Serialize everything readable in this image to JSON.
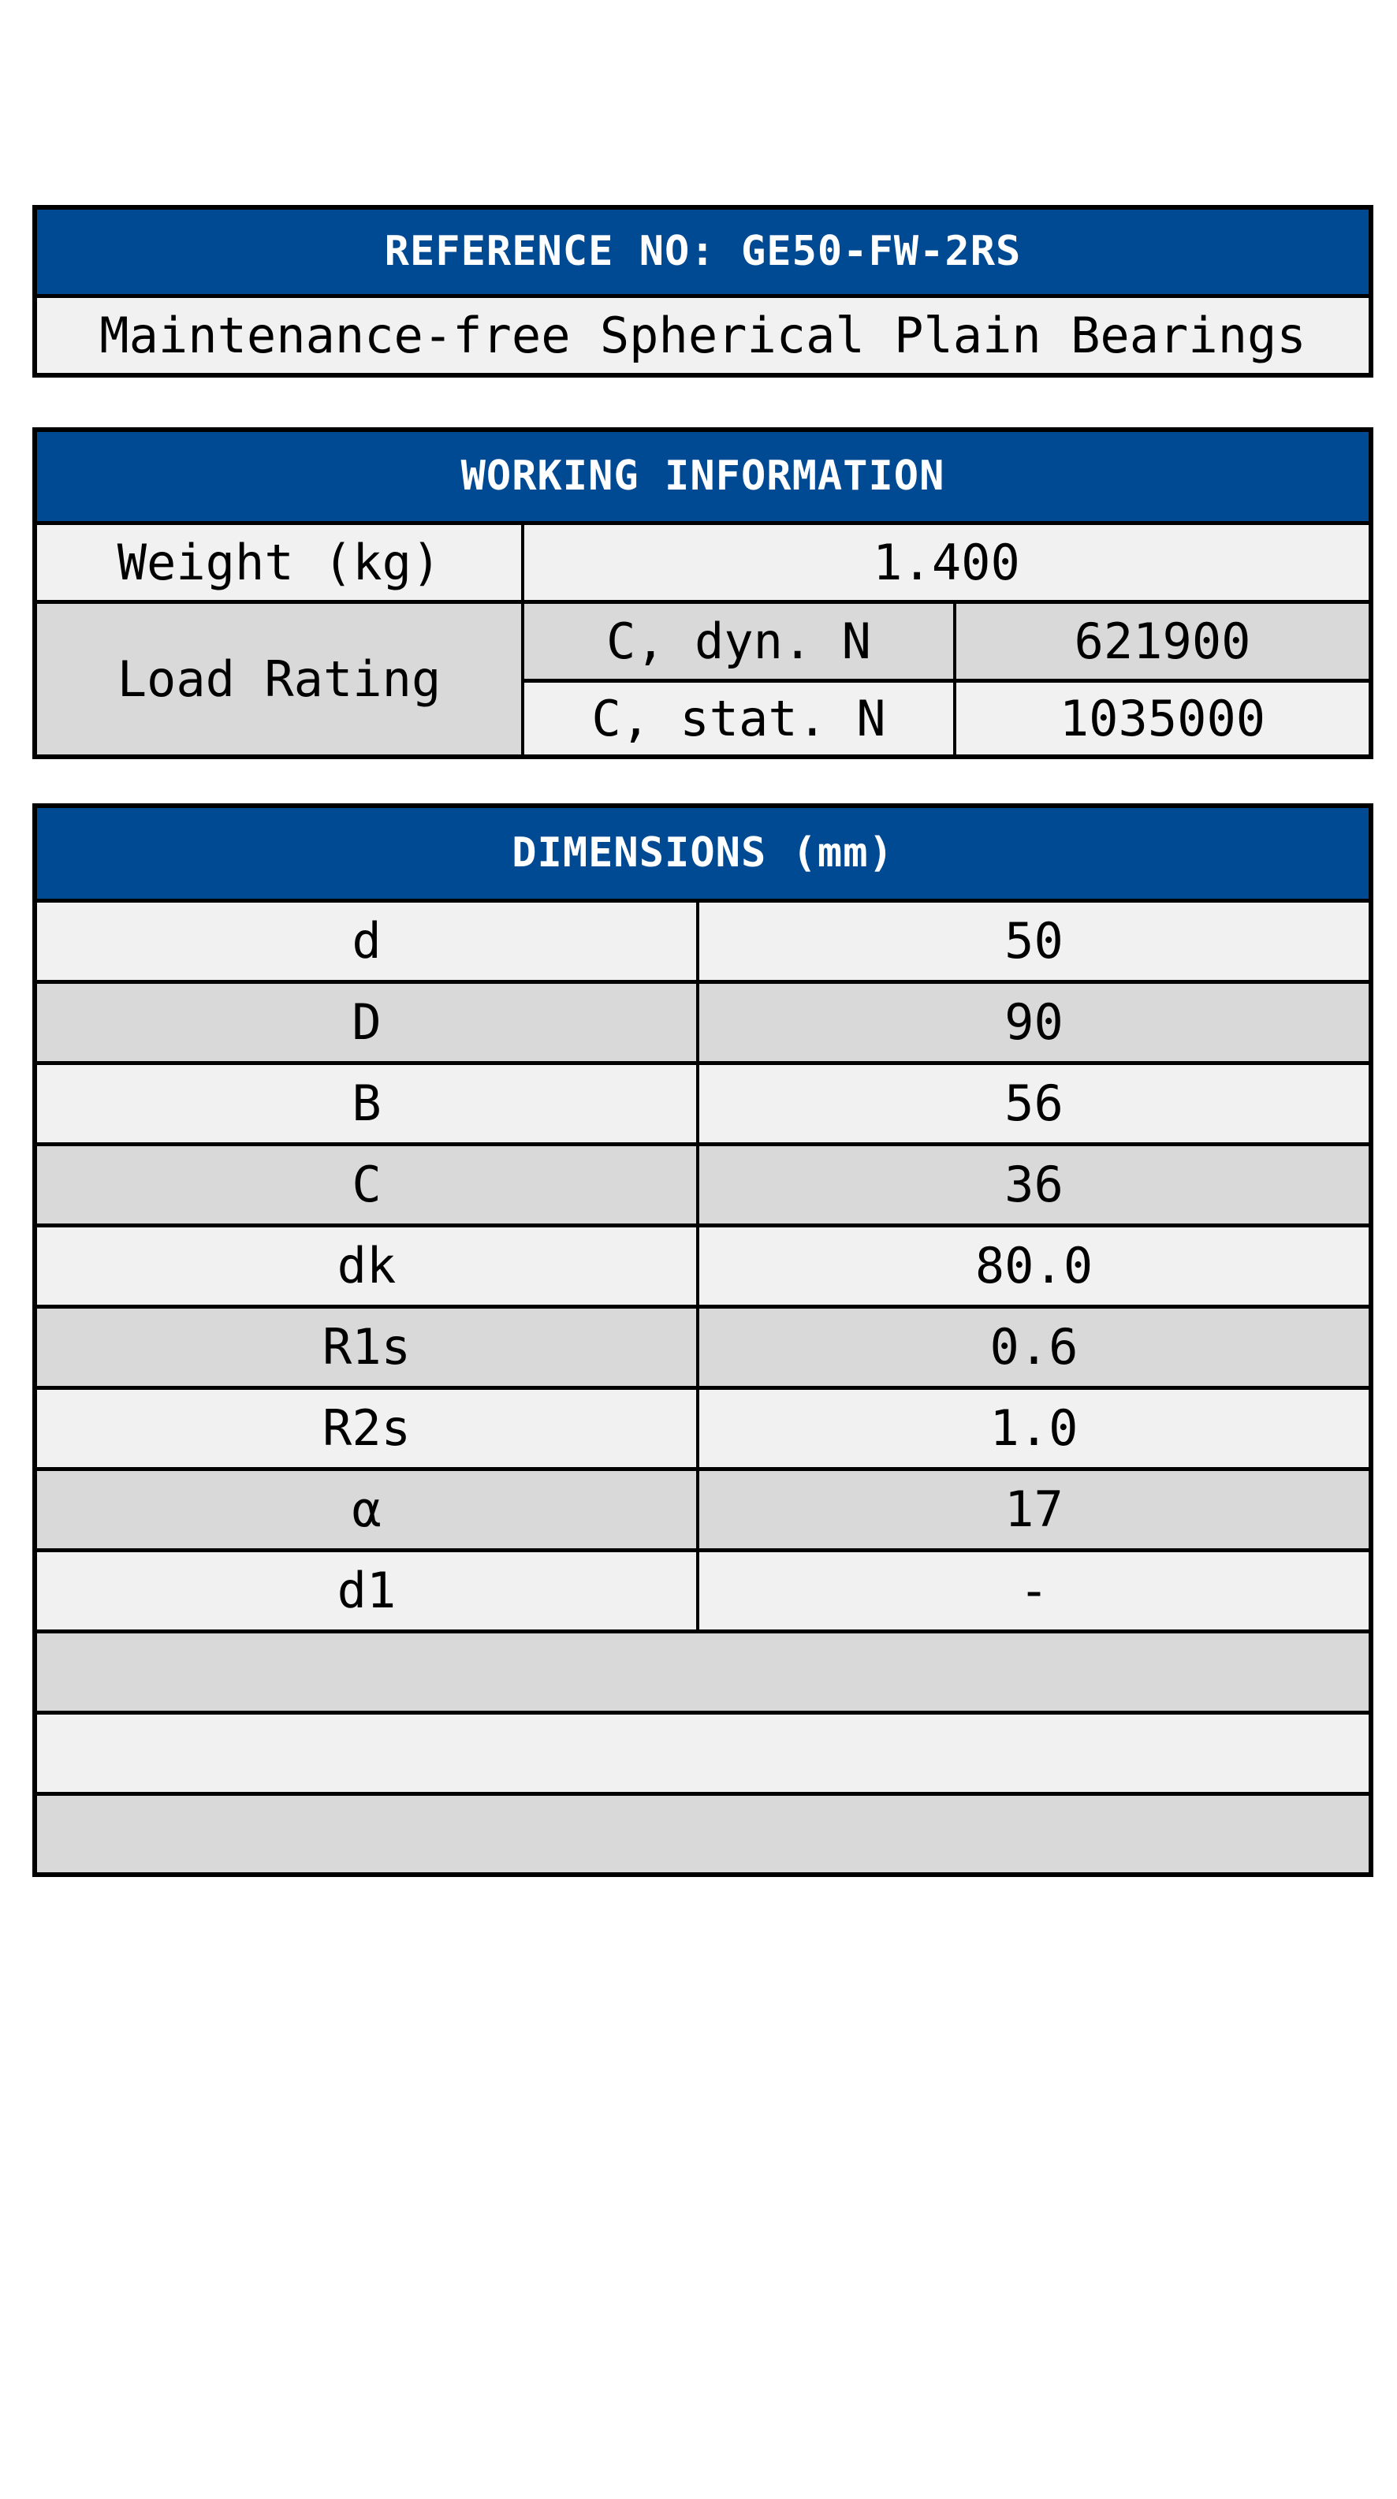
{
  "colors": {
    "header_bg": "#004a93",
    "header_text": "#ffffff",
    "row_light": "#f1f1f1",
    "row_dark": "#d9d9d9",
    "border": "#000000",
    "page_bg": "#ffffff"
  },
  "reference_table": {
    "header": "REFERENCE NO: GE50-FW-2RS",
    "subtitle": "Maintenance-free Spherical Plain Bearings"
  },
  "working_information": {
    "title": "WORKING INFORMATION",
    "weight_label": "Weight (kg)",
    "weight_value": "1.400",
    "load_rating_label": "Load Rating",
    "rows": [
      {
        "label": "C, dyn. N",
        "value": "621900"
      },
      {
        "label": "C, stat. N",
        "value": "1035000"
      }
    ]
  },
  "dimensions": {
    "title": "DIMENSIONS (mm)",
    "rows": [
      {
        "label": "d",
        "value": "50"
      },
      {
        "label": "D",
        "value": "90"
      },
      {
        "label": "B",
        "value": "56"
      },
      {
        "label": "C",
        "value": "36"
      },
      {
        "label": "dk",
        "value": "80.0"
      },
      {
        "label": "R1s",
        "value": "0.6"
      },
      {
        "label": "R2s",
        "value": "1.0"
      },
      {
        "label": "α",
        "value": "17"
      },
      {
        "label": "d1",
        "value": "-"
      }
    ],
    "empty_rows": 3
  }
}
